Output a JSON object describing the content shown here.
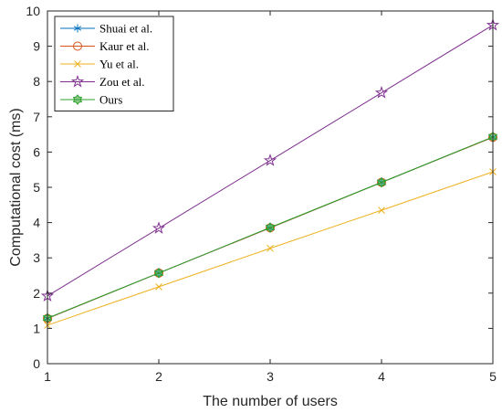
{
  "chart_data": {
    "type": "line",
    "xlabel": "The number of users",
    "ylabel": "Computational cost (ms)",
    "x": [
      1,
      2,
      3,
      4,
      5
    ],
    "xlim": [
      1,
      5
    ],
    "ylim": [
      0,
      10
    ],
    "xticks": [
      "1",
      "2",
      "3",
      "4",
      "5"
    ],
    "yticks": [
      "0",
      "1",
      "2",
      "3",
      "4",
      "5",
      "6",
      "7",
      "8",
      "9",
      "10"
    ],
    "legend_position": "top-left",
    "grid": false,
    "series": [
      {
        "name": "Shuai et al.",
        "color": "#0072BD",
        "marker": "asterisk",
        "values": [
          1.28,
          2.57,
          3.85,
          5.14,
          6.42
        ]
      },
      {
        "name": "Kaur et al.",
        "color": "#D95319",
        "marker": "circle",
        "values": [
          1.28,
          2.57,
          3.85,
          5.14,
          6.42
        ]
      },
      {
        "name": "Yu et al.",
        "color": "#EDB120",
        "marker": "x",
        "values": [
          1.09,
          2.18,
          3.27,
          4.35,
          5.44
        ]
      },
      {
        "name": "Zou et al.",
        "color": "#7E2F8E",
        "marker": "star",
        "values": [
          1.92,
          3.84,
          5.76,
          7.68,
          9.6
        ]
      },
      {
        "name": "Ours",
        "color": "#2CA02C",
        "marker": "hexagram",
        "values": [
          1.29,
          2.57,
          3.86,
          5.14,
          6.43
        ]
      }
    ]
  }
}
